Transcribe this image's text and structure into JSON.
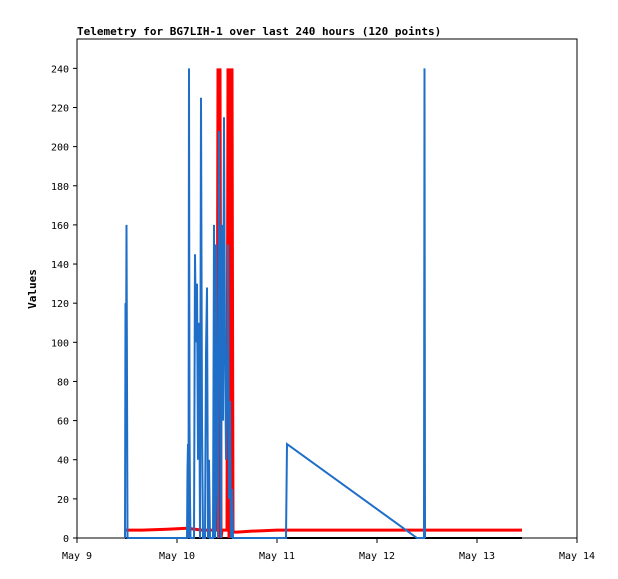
{
  "chart_data": {
    "type": "line",
    "title": "Telemetry for BG7LIH-1 over last 240 hours (120 points)",
    "xlabel": "",
    "ylabel": "Values",
    "x_range": [
      9,
      14
    ],
    "ylim": [
      0,
      255
    ],
    "x_unit": "day of May",
    "x_ticks": [
      {
        "value": 9,
        "label": "May 9"
      },
      {
        "value": 10,
        "label": "May 10"
      },
      {
        "value": 11,
        "label": "May 11"
      },
      {
        "value": 12,
        "label": "May 12"
      },
      {
        "value": 13,
        "label": "May 13"
      },
      {
        "value": 14,
        "label": "May 14"
      }
    ],
    "y_ticks": [
      {
        "value": 0,
        "label": "0"
      },
      {
        "value": 20,
        "label": "20"
      },
      {
        "value": 40,
        "label": "40"
      },
      {
        "value": 60,
        "label": "60"
      },
      {
        "value": 80,
        "label": "80"
      },
      {
        "value": 100,
        "label": "100"
      },
      {
        "value": 120,
        "label": "120"
      },
      {
        "value": 140,
        "label": "140"
      },
      {
        "value": 160,
        "label": "160"
      },
      {
        "value": 180,
        "label": "180"
      },
      {
        "value": 200,
        "label": "200"
      },
      {
        "value": 220,
        "label": "220"
      },
      {
        "value": 240,
        "label": "240"
      }
    ],
    "grid": false,
    "legend": "none",
    "series": [
      {
        "color": "#000000",
        "x": [
          9.48,
          13.45
        ],
        "y": [
          0,
          0
        ]
      },
      {
        "color": "#ff0000",
        "x": [
          9.48,
          9.65,
          9.9,
          10.1,
          10.25,
          10.4,
          10.41,
          10.42,
          10.43,
          10.44,
          10.45,
          10.5,
          10.51,
          10.52,
          10.53,
          10.54,
          10.55,
          10.56,
          10.6,
          10.75,
          11.0,
          11.5,
          12.0,
          12.5,
          13.0,
          13.45
        ],
        "y": [
          4,
          4,
          4.5,
          5,
          4,
          4,
          240,
          0,
          240,
          0,
          4,
          4,
          240,
          0,
          240,
          0,
          240,
          3,
          3,
          3.5,
          4,
          4,
          4,
          4,
          4,
          4
        ]
      },
      {
        "color": "#1f6fc8",
        "x": [
          9.48,
          9.485,
          9.49,
          9.495,
          9.5,
          9.505,
          10.1,
          10.105,
          10.11,
          10.115,
          10.12,
          10.125,
          10.13,
          10.135,
          10.17,
          10.18,
          10.19,
          10.2,
          10.21,
          10.22,
          10.23,
          10.24,
          10.25,
          10.26,
          10.28,
          10.29,
          10.3,
          10.31,
          10.32,
          10.33,
          10.36,
          10.37,
          10.38,
          10.39,
          10.4,
          10.41,
          10.42,
          10.43,
          10.44,
          10.45,
          10.46,
          10.47,
          10.48,
          10.49,
          10.5,
          10.51,
          10.52,
          10.53,
          10.54,
          10.55,
          10.56,
          11.09,
          11.1,
          12.4,
          12.47,
          12.475,
          12.48
        ],
        "y": [
          0,
          120,
          80,
          160,
          80,
          0,
          0,
          35,
          48,
          0,
          240,
          60,
          20,
          0,
          0,
          145,
          100,
          130,
          40,
          110,
          0,
          225,
          60,
          0,
          0,
          95,
          128,
          0,
          40,
          0,
          0,
          160,
          0,
          150,
          30,
          0,
          208,
          140,
          0,
          160,
          60,
          215,
          100,
          40,
          80,
          150,
          20,
          70,
          0,
          25,
          0,
          0,
          48,
          0,
          0,
          240,
          0
        ]
      }
    ]
  }
}
